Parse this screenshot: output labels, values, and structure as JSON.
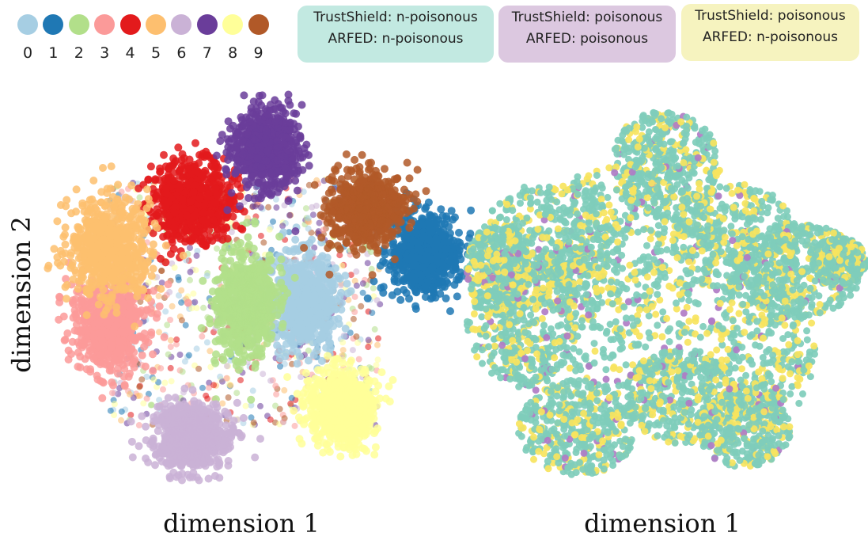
{
  "legend": {
    "items": [
      {
        "label": "0",
        "color": "#a6cee3"
      },
      {
        "label": "1",
        "color": "#1f78b4"
      },
      {
        "label": "2",
        "color": "#b2df8a"
      },
      {
        "label": "3",
        "color": "#fb9a99"
      },
      {
        "label": "4",
        "color": "#e31a1c"
      },
      {
        "label": "5",
        "color": "#fdbf6f"
      },
      {
        "label": "6",
        "color": "#cab2d6"
      },
      {
        "label": "7",
        "color": "#6a3d9a"
      },
      {
        "label": "8",
        "color": "#ffff99"
      },
      {
        "label": "9",
        "color": "#b15928"
      }
    ]
  },
  "status_legend": [
    {
      "line1": "TrustShield: n-poisonous",
      "line2": "ARFED: n-poisonous",
      "bg": "#c2e9e1",
      "color": "#7fcdbb"
    },
    {
      "line1": "TrustShield: poisonous",
      "line2": "ARFED: poisonous",
      "bg": "#dcc8e0",
      "color": "#b07cc6"
    },
    {
      "line1": "TrustShield: poisonous",
      "line2": "ARFED: n-poisonous",
      "bg": "#f6f3bf",
      "color": "#f7e45e"
    }
  ],
  "chart_data": [
    {
      "type": "scatter",
      "title": "",
      "xlabel": "dimension 1",
      "ylabel": "dimension 2",
      "grid": false,
      "color_by": "class label (0-9)",
      "clusters": [
        {
          "label": "0",
          "cx": 0.62,
          "cy": 0.48
        },
        {
          "label": "1",
          "cx": 0.93,
          "cy": 0.6
        },
        {
          "label": "2",
          "cx": 0.47,
          "cy": 0.47
        },
        {
          "label": "3",
          "cx": 0.12,
          "cy": 0.42
        },
        {
          "label": "4",
          "cx": 0.33,
          "cy": 0.74
        },
        {
          "label": "5",
          "cx": 0.12,
          "cy": 0.62
        },
        {
          "label": "6",
          "cx": 0.33,
          "cy": 0.12
        },
        {
          "label": "7",
          "cx": 0.52,
          "cy": 0.88
        },
        {
          "label": "8",
          "cx": 0.72,
          "cy": 0.2
        },
        {
          "label": "9",
          "cx": 0.78,
          "cy": 0.72
        }
      ]
    },
    {
      "type": "scatter",
      "title": "",
      "xlabel": "dimension 1",
      "ylabel": "",
      "grid": false,
      "color_by": "poisoning verdict (TrustShield vs ARFED)",
      "composition": {
        "both_n_poisonous": 0.7,
        "both_poisonous": 0.03,
        "trustshield_only_poisonous": 0.27
      }
    }
  ]
}
